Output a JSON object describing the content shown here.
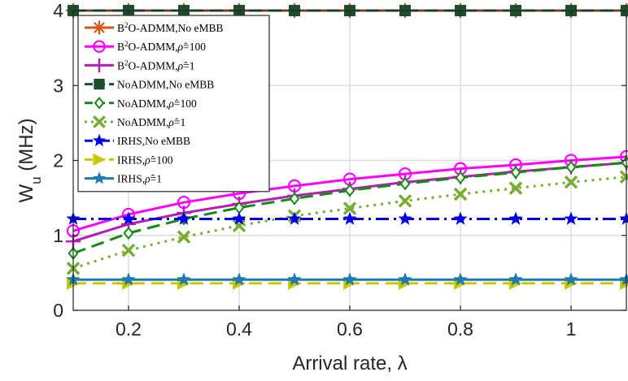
{
  "chart_data": {
    "type": "line",
    "xlabel": "Arrival rate, λ",
    "ylabel_main": "W",
    "ylabel_sub": "u",
    "ylabel_unit": " (MHz)",
    "xlim": [
      0.1,
      1.1
    ],
    "ylim": [
      0,
      4
    ],
    "xticks": [
      0.2,
      0.4,
      0.6,
      0.8,
      1.0
    ],
    "xtick_labels": [
      "0.2",
      "0.4",
      "0.6",
      "0.8",
      "1"
    ],
    "yticks": [
      0,
      1,
      2,
      3,
      4
    ],
    "ytick_labels": [
      "0",
      "1",
      "2",
      "3",
      "4"
    ],
    "grid": true,
    "legend_position": "top-left",
    "x": [
      0.1,
      0.2,
      0.3,
      0.4,
      0.5,
      0.6,
      0.7,
      0.8,
      0.9,
      1.0,
      1.1
    ],
    "series": [
      {
        "name": "B²O-ADMM,No eMBB",
        "legend_parts": [
          [
            "B",
            ""
          ],
          [
            "2",
            "sup"
          ],
          [
            "O-ADMM,No eMBB",
            ""
          ]
        ],
        "color": "#D95319",
        "dash": "solid",
        "marker": "asterisk",
        "values": [
          4.0,
          4.0,
          4.0,
          4.0,
          4.0,
          4.0,
          4.0,
          4.0,
          4.0,
          4.0,
          4.0
        ]
      },
      {
        "name": "B²O-ADMM,ρ̂=100",
        "legend_parts": [
          [
            "B",
            ""
          ],
          [
            "2",
            "sup"
          ],
          [
            "O-ADMM,",
            ""
          ],
          [
            "ρ̂",
            "it"
          ],
          [
            "=100",
            ""
          ]
        ],
        "color": "#FF00FF",
        "dash": "solid",
        "marker": "circle",
        "values": [
          1.06,
          1.28,
          1.44,
          1.56,
          1.66,
          1.75,
          1.82,
          1.89,
          1.94,
          2.0,
          2.05
        ]
      },
      {
        "name": "B²O-ADMM,ρ̂=1",
        "legend_parts": [
          [
            "B",
            ""
          ],
          [
            "2",
            "sup"
          ],
          [
            "O-ADMM,",
            ""
          ],
          [
            "ρ̂",
            "it"
          ],
          [
            "=1",
            ""
          ]
        ],
        "color": "#B31FB3",
        "dash": "solid",
        "marker": "plus",
        "values": [
          0.92,
          1.15,
          1.3,
          1.42,
          1.53,
          1.62,
          1.71,
          1.78,
          1.85,
          1.91,
          1.97
        ]
      },
      {
        "name": "NoADMM,No eMBB",
        "legend_parts": [
          [
            "NoADMM,No eMBB",
            ""
          ]
        ],
        "color": "#1B4D2E",
        "dash": "dash",
        "marker": "square",
        "values": [
          4.0,
          4.0,
          4.0,
          4.0,
          4.0,
          4.0,
          4.0,
          4.0,
          4.0,
          4.0,
          4.0
        ]
      },
      {
        "name": "NoADMM,ρ̂=100",
        "legend_parts": [
          [
            "NoADMM,",
            ""
          ],
          [
            "ρ̂",
            "it"
          ],
          [
            "=100",
            ""
          ]
        ],
        "color": "#148A14",
        "dash": "dash",
        "marker": "diamond",
        "values": [
          0.76,
          1.03,
          1.22,
          1.37,
          1.49,
          1.6,
          1.69,
          1.77,
          1.84,
          1.91,
          1.97
        ]
      },
      {
        "name": "NoADMM,ρ̂=1",
        "legend_parts": [
          [
            "NoADMM,",
            ""
          ],
          [
            "ρ̂",
            "it"
          ],
          [
            "=1",
            ""
          ]
        ],
        "color": "#77AC30",
        "dash": "dot",
        "marker": "x",
        "values": [
          0.56,
          0.8,
          0.98,
          1.13,
          1.26,
          1.36,
          1.46,
          1.55,
          1.63,
          1.71,
          1.78
        ]
      },
      {
        "name": "IRHS,No eMBB",
        "legend_parts": [
          [
            "IRHS,No eMBB",
            ""
          ]
        ],
        "color": "#0000E6",
        "dash": "dashdot",
        "marker": "star",
        "values": [
          1.22,
          1.22,
          1.22,
          1.22,
          1.22,
          1.22,
          1.22,
          1.22,
          1.22,
          1.22,
          1.22
        ]
      },
      {
        "name": "IRHS,ρ̂=100",
        "legend_parts": [
          [
            "IRHS,",
            ""
          ],
          [
            "ρ̂",
            "it"
          ],
          [
            "=100",
            ""
          ]
        ],
        "color": "#C8C800",
        "dash": "dash",
        "marker": "triangle-right",
        "values": [
          0.36,
          0.36,
          0.36,
          0.36,
          0.36,
          0.36,
          0.36,
          0.36,
          0.36,
          0.36,
          0.36
        ]
      },
      {
        "name": "IRHS,ρ̂=1",
        "legend_parts": [
          [
            "IRHS,",
            ""
          ],
          [
            "ρ̂",
            "it"
          ],
          [
            "=1",
            ""
          ]
        ],
        "color": "#1F7AB4",
        "dash": "solid",
        "marker": "star",
        "values": [
          0.41,
          0.41,
          0.41,
          0.41,
          0.41,
          0.41,
          0.41,
          0.41,
          0.41,
          0.41,
          0.41
        ]
      }
    ]
  }
}
